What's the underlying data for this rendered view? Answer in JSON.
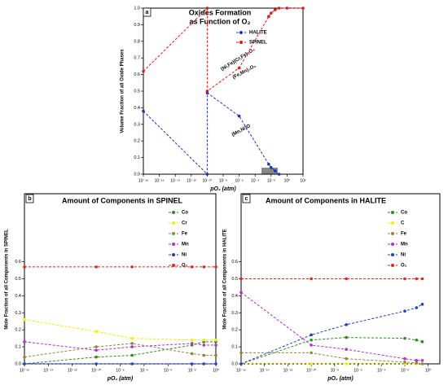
{
  "chart_data": [
    {
      "type": "line",
      "panel_label": "a",
      "title": "Oxides Formation",
      "subtitle": "as Function of O₂",
      "x_label": "pO₂ (atm)",
      "y_label": "Volume Fraction of all Oxide Phases",
      "xlim": [
        -18,
        2
      ],
      "ylim": [
        0,
        1.0
      ],
      "xticks": [
        {
          "value": -18,
          "label": "10⁻¹⁸"
        },
        {
          "value": -16,
          "label": "10⁻¹⁶"
        },
        {
          "value": -14,
          "label": "10⁻¹⁴"
        },
        {
          "value": -12,
          "label": "10⁻¹²"
        },
        {
          "value": -10,
          "label": "10⁻¹⁰"
        },
        {
          "value": -8,
          "label": "10⁻⁸"
        },
        {
          "value": -6,
          "label": "10⁻⁶"
        },
        {
          "value": -4,
          "label": "10⁻⁴"
        },
        {
          "value": -2,
          "label": "10⁻²"
        },
        {
          "value": 0,
          "label": "10⁰"
        },
        {
          "value": 2,
          "label": "10²"
        }
      ],
      "yticks": [
        {
          "value": 0,
          "label": "0.0"
        },
        0.1,
        0.2,
        0.3,
        0.4,
        0.5,
        0.6,
        0.7,
        0.8,
        0.9,
        {
          "value": 1.0,
          "label": "1.0"
        }
      ],
      "legend": "upper right",
      "annotations": [
        "(Ni,Fe)(Cr,Fe)₂O₄",
        "(Fe,Mn)₃O₄",
        "(Mn,Ni)O"
      ],
      "series": [
        {
          "name": "HALITE",
          "color": "#1f2fc8",
          "x": [
            -18,
            -10,
            -10,
            -6,
            -2.3,
            -2,
            -1.5,
            -1
          ],
          "values": [
            0.38,
            0,
            0.49,
            0.35,
            0.06,
            0.04,
            0.02,
            0
          ]
        },
        {
          "name": "SPINEL",
          "color": "#f01414",
          "x": [
            -18,
            -10,
            -10,
            -6,
            -2.3,
            -2,
            -1.5,
            -1,
            0,
            2
          ],
          "values": [
            0.62,
            1.0,
            0.5,
            0.64,
            0.95,
            0.97,
            0.99,
            1.0,
            1.0,
            1.0
          ]
        }
      ]
    },
    {
      "type": "line",
      "panel_label": "b",
      "title": "Amount of Components in SPINEL",
      "x_label": "pO₂ (atm)",
      "y_label": "Mole Fraction of all Components in SPINEL",
      "xlim": [
        -16,
        0
      ],
      "ylim": [
        0,
        1.0
      ],
      "xticks": [
        {
          "value": -16,
          "label": "10⁻¹⁶"
        },
        {
          "value": -14,
          "label": "10⁻¹⁴"
        },
        {
          "value": -12,
          "label": "10⁻¹²"
        },
        {
          "value": -10,
          "label": "10⁻¹⁰"
        },
        {
          "value": -8,
          "label": "10⁻⁸"
        },
        {
          "value": -6,
          "label": "10⁻⁶"
        },
        {
          "value": -4,
          "label": "10⁻⁴"
        },
        {
          "value": -2,
          "label": "10⁻²"
        },
        {
          "value": 0,
          "label": "10⁰"
        }
      ],
      "yticks": [
        {
          "value": 0,
          "label": "0.0"
        },
        0.1,
        0.2,
        0.3,
        0.4,
        0.5,
        0.6
      ],
      "legend": "upper right",
      "x": [
        -16,
        -10,
        -7,
        -2,
        -1,
        0
      ],
      "series": [
        {
          "name": "Co",
          "color": "#2e8b22",
          "values": [
            0.0,
            0.04,
            0.05,
            0.11,
            0.13,
            0.13
          ]
        },
        {
          "name": "Cr",
          "color": "#f2f000",
          "values": [
            0.26,
            0.19,
            0.15,
            0.14,
            0.14,
            0.14
          ]
        },
        {
          "name": "Fe",
          "color": "#8a8a3c",
          "values": [
            0.04,
            0.1,
            0.12,
            0.06,
            0.05,
            0.05
          ]
        },
        {
          "name": "Mn",
          "color": "#b030d0",
          "values": [
            0.13,
            0.08,
            0.1,
            0.12,
            0.11,
            0.11
          ]
        },
        {
          "name": "Ni",
          "color": "#1f3fd0",
          "values": [
            0.0,
            0.0,
            0.0,
            0.0,
            0.0,
            0.0
          ]
        },
        {
          "name": "O₂",
          "color": "#e8251e",
          "values": [
            0.57,
            0.57,
            0.57,
            0.57,
            0.57,
            0.57
          ]
        }
      ]
    },
    {
      "type": "line",
      "panel_label": "c",
      "title": "Amount of Components in HALITE",
      "x_label": "pO₂ (atm)",
      "y_label": "Mole Fraction of all Components in HALITE",
      "xlim": [
        -16,
        1
      ],
      "ylim": [
        0,
        1.0
      ],
      "xticks": [
        {
          "value": -16,
          "label": "10⁻¹⁶"
        },
        {
          "value": -14,
          "label": "10⁻¹⁴"
        },
        {
          "value": -12,
          "label": "10⁻¹²"
        },
        {
          "value": -10,
          "label": "10⁻¹⁰"
        },
        {
          "value": -8,
          "label": "10⁻⁸"
        },
        {
          "value": -6,
          "label": "10⁻⁶"
        },
        {
          "value": -4,
          "label": "10⁻⁴"
        },
        {
          "value": -2,
          "label": "10⁻²"
        },
        {
          "value": 0,
          "label": "10⁰"
        }
      ],
      "yticks": [
        {
          "value": 0,
          "label": "0.0"
        },
        0.1,
        0.2,
        0.3,
        0.4,
        0.5,
        0.6
      ],
      "legend": "upper right",
      "x": [
        -16,
        -10,
        -7,
        -2,
        -1,
        -0.5
      ],
      "series": [
        {
          "name": "Co",
          "color": "#2e8b22",
          "values": [
            0.0,
            0.14,
            0.155,
            0.15,
            0.14,
            0.13
          ]
        },
        {
          "name": "C",
          "color": "#f2f000",
          "values": [
            0,
            0,
            0,
            0,
            0,
            0
          ]
        },
        {
          "name": "Fe",
          "color": "#8a8a3c",
          "values": [
            0.065,
            0.065,
            0.03,
            0.01,
            0.005,
            0.0
          ]
        },
        {
          "name": "Mn",
          "color": "#b030d0",
          "values": [
            0.42,
            0.11,
            0.085,
            0.03,
            0.02,
            0.02
          ]
        },
        {
          "name": "Ni",
          "color": "#1f3fd0",
          "values": [
            0.0,
            0.17,
            0.23,
            0.31,
            0.33,
            0.35
          ]
        },
        {
          "name": "O₂",
          "color": "#e8251e",
          "values": [
            0.5,
            0.5,
            0.5,
            0.5,
            0.5,
            0.5
          ]
        }
      ]
    }
  ]
}
